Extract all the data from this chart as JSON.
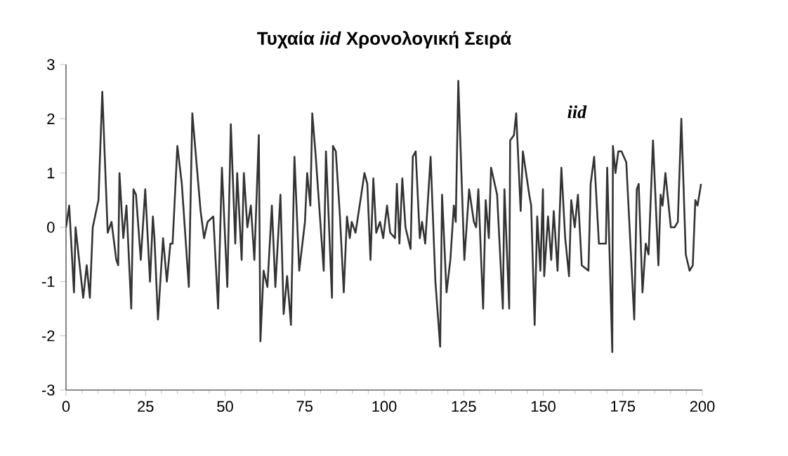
{
  "chart_data": {
    "type": "line",
    "title": "Τυχαία *iid* Χρονολογική Σειρά",
    "xlim": [
      0,
      200
    ],
    "xticks": [
      0,
      25,
      50,
      75,
      100,
      125,
      150,
      175,
      200
    ],
    "ylim": [
      -3,
      3
    ],
    "yticks": [
      -3,
      -2,
      -1,
      0,
      1,
      2,
      3
    ],
    "grid": false,
    "legend": false,
    "marker": "none",
    "line_style": "solid",
    "series": [
      {
        "name": "iid",
        "color": "#333333",
        "x": [
          0,
          1,
          2.5,
          3,
          5.4,
          6.5,
          7.5,
          8.4,
          10.2,
          11.4,
          13.1,
          14.3,
          15.8,
          16.4,
          16.8,
          18,
          19,
          20.5,
          21.2,
          22,
          23.5,
          24.9,
          26.4,
          27.3,
          27.8,
          28.9,
          30.5,
          31.7,
          32.8,
          33.5,
          35,
          36.4,
          38.6,
          39.7,
          42.3,
          43.4,
          44.5,
          46.3,
          47.8,
          49,
          50.7,
          51.8,
          53.2,
          53.8,
          55.2,
          55.9,
          57,
          58.1,
          59.2,
          60.6,
          61.1,
          62.1,
          63.3,
          64.7,
          65.8,
          67.4,
          68.4,
          69.5,
          70.7,
          71.8,
          73.3,
          75.1,
          75.8,
          76.8,
          77.4,
          78.5,
          81,
          81.7,
          83.6,
          83.9,
          84.8,
          86.1,
          87.3,
          88.3,
          89.2,
          89.8,
          91,
          92.8,
          93.8,
          94.7,
          95.7,
          96.6,
          97.5,
          98.7,
          99.7,
          100.9,
          101.9,
          103.4,
          104,
          104.8,
          105.7,
          106.7,
          108.3,
          109,
          109.9,
          111.2,
          111.9,
          112.9,
          114.6,
          116.1,
          117.6,
          118.2,
          119.6,
          120.8,
          121.9,
          122.5,
          123.3,
          125.2,
          126.7,
          128.2,
          128.9,
          129.6,
          131.1,
          131.9,
          132.9,
          133.6,
          135.5,
          137.3,
          137.8,
          139.3,
          139.6,
          140.8,
          141.5,
          142.9,
          143.6,
          145.6,
          146.2,
          147.3,
          148.1,
          149.1,
          149.9,
          150.3,
          151.5,
          152.5,
          153.3,
          154.5,
          155.7,
          156.9,
          158.1,
          158.8,
          159.9,
          160.9,
          162.1,
          164.2,
          164.9,
          166,
          167.5,
          168.5,
          169.7,
          170.1,
          171.7,
          171.9,
          172.7,
          173.6,
          174.6,
          176.1,
          178.6,
          179.4,
          180,
          181.2,
          182.2,
          183.1,
          184.5,
          186.2,
          186.9,
          187.5,
          188.4,
          190.1,
          191.3,
          192.3,
          193.4,
          194.8,
          196,
          197,
          197.8,
          198.5,
          199.6
        ],
        "values": [
          0,
          0.4,
          -1.2,
          0,
          -1.3,
          -0.7,
          -1.3,
          0,
          0.5,
          2.5,
          -0.1,
          0.1,
          -0.6,
          -0.7,
          1,
          -0.2,
          0.4,
          -1.5,
          0.7,
          0.6,
          -0.6,
          0.7,
          -1,
          0.2,
          -0.2,
          -1.7,
          -0.2,
          -1,
          -0.3,
          -0.3,
          1.5,
          0.8,
          -1.1,
          2.1,
          0.3,
          -0.2,
          0.1,
          0.2,
          -1.5,
          1.1,
          -1.1,
          1.9,
          -0.3,
          1,
          -0.6,
          1,
          0,
          0.4,
          -0.6,
          1.7,
          -2.1,
          -0.8,
          -1.1,
          0.4,
          -1.1,
          0.6,
          -1.6,
          -0.9,
          -1.8,
          1.3,
          -0.8,
          0.1,
          1,
          0.4,
          2.1,
          1.3,
          -0.8,
          1.4,
          -1.3,
          1.5,
          1.4,
          0.2,
          -1.2,
          0.2,
          -0.2,
          0.1,
          -0.1,
          0.6,
          1,
          0.8,
          -0.6,
          0.9,
          -0.1,
          0.1,
          -0.2,
          0.4,
          -0.1,
          -0.2,
          0.8,
          -0.3,
          0.9,
          0,
          -0.4,
          1.3,
          1.4,
          -0.2,
          0.1,
          -0.3,
          1.3,
          -1,
          -2.2,
          0.6,
          -1.2,
          -0.6,
          0.4,
          0.1,
          2.7,
          -0.6,
          0.7,
          0.1,
          0,
          0.7,
          -1.5,
          0.5,
          -0.2,
          1.1,
          0.6,
          -1.5,
          0.7,
          -1.5,
          1.6,
          1.7,
          2.1,
          0.3,
          1.4,
          0.6,
          0.4,
          -1.8,
          0.2,
          -0.8,
          0.7,
          -0.9,
          0.2,
          -0.6,
          0.3,
          -0.8,
          1.1,
          -0.2,
          -0.9,
          0.5,
          0,
          0.6,
          -0.7,
          -0.8,
          0.8,
          1.3,
          -0.3,
          -0.3,
          -0.3,
          1.1,
          -2.3,
          1.5,
          1,
          1.4,
          1.4,
          1.2,
          -1.7,
          0.7,
          0.8,
          -1.2,
          -0.3,
          -0.5,
          1.6,
          -0.7,
          0.6,
          0.4,
          1,
          0,
          0,
          0.1,
          2,
          -0.5,
          -0.8,
          -0.7,
          0.5,
          0.4,
          0.8
        ]
      }
    ]
  }
}
